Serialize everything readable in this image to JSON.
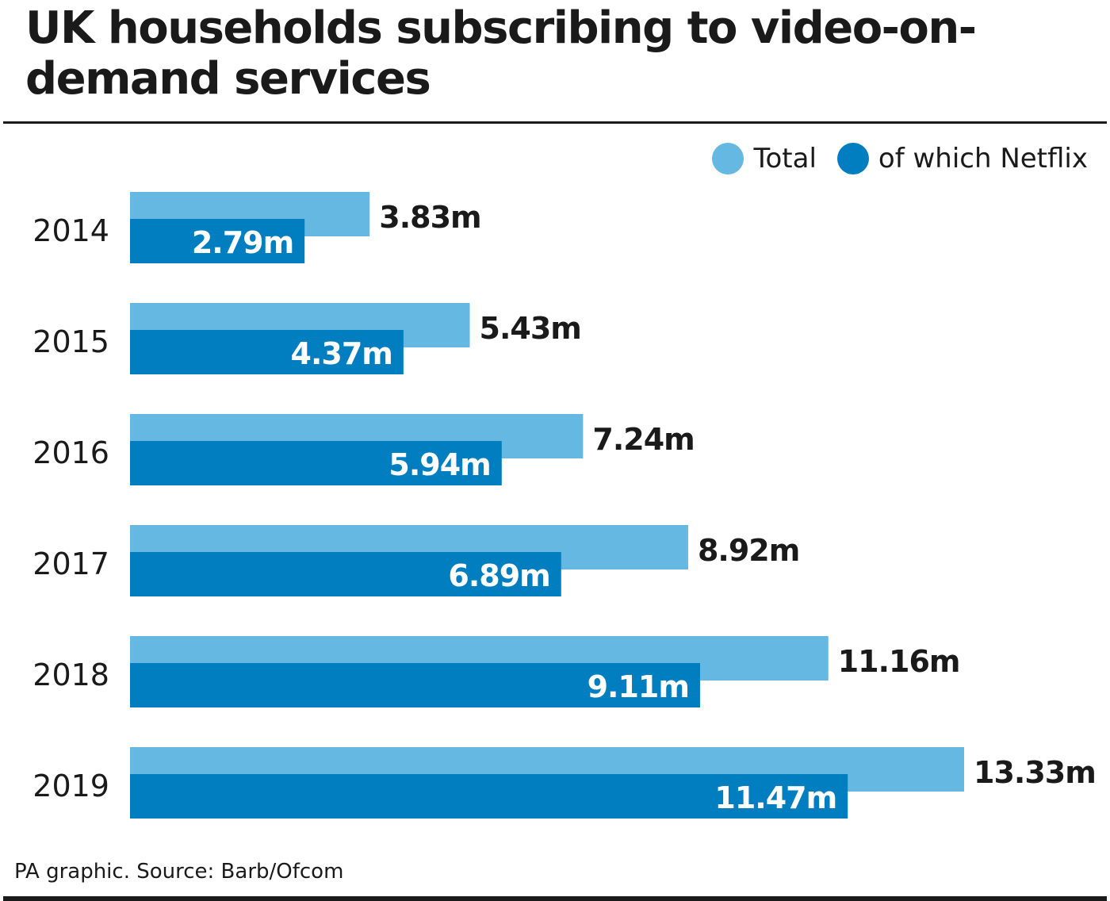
{
  "chart_data": {
    "type": "bar",
    "orientation": "horizontal",
    "title": "UK households subscribing to video-on-demand services",
    "categories": [
      "2014",
      "2015",
      "2016",
      "2017",
      "2018",
      "2019"
    ],
    "series": [
      {
        "name": "Total",
        "color": "#65b8e2",
        "values": [
          3.83,
          5.43,
          7.24,
          8.92,
          11.16,
          13.33
        ],
        "labels": [
          "3.83m",
          "5.43m",
          "7.24m",
          "8.92m",
          "11.16m",
          "13.33m"
        ]
      },
      {
        "name": "of which Netflix",
        "color": "#007ec0",
        "values": [
          2.79,
          4.37,
          5.94,
          6.89,
          9.11,
          11.47
        ],
        "labels": [
          "2.79m",
          "4.37m",
          "5.94m",
          "6.89m",
          "9.11m",
          "11.47m"
        ]
      }
    ],
    "xlim": [
      0,
      13.33
    ],
    "grid": false,
    "legend_position": "top-right"
  },
  "source": "PA graphic. Source: Barb/Ofcom"
}
